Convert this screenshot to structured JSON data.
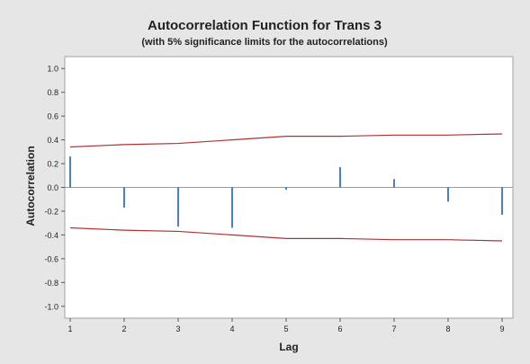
{
  "chart_data": {
    "type": "bar",
    "title": "Autocorrelation Function for Trans 3",
    "subtitle": "(with 5% significance limits for the autocorrelations)",
    "xlabel": "Lag",
    "ylabel": "Autocorrelation",
    "x": [
      1,
      2,
      3,
      4,
      5,
      6,
      7,
      8,
      9
    ],
    "values": [
      0.26,
      -0.17,
      -0.33,
      -0.34,
      -0.02,
      0.17,
      0.07,
      -0.12,
      -0.23
    ],
    "upper_limit": [
      0.34,
      0.36,
      0.37,
      0.4,
      0.43,
      0.43,
      0.44,
      0.44,
      0.45
    ],
    "lower_limit": [
      -0.34,
      -0.36,
      -0.37,
      -0.4,
      -0.43,
      -0.43,
      -0.44,
      -0.44,
      -0.45
    ],
    "xlim": [
      0.9,
      9.2
    ],
    "ylim": [
      -1.1,
      1.1
    ],
    "y_ticks": [
      "1.0",
      "0.8",
      "0.6",
      "0.4",
      "0.2",
      "0.0",
      "-0.2",
      "-0.4",
      "-0.6",
      "-0.8",
      "-1.0"
    ],
    "x_ticks": [
      "1",
      "2",
      "3",
      "4",
      "5",
      "6",
      "7",
      "8",
      "9"
    ],
    "grid": false,
    "legend": "none",
    "colors": {
      "bar": "#1f5fb4",
      "limit_line": "#b03030",
      "zero_line": "#9a9a9a",
      "plot_background": "#ffffff",
      "figure_background": "#e6e6e6"
    }
  }
}
